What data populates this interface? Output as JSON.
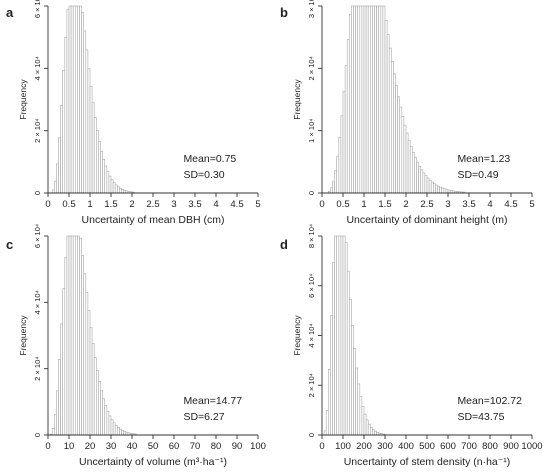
{
  "chart_data": [
    {
      "type": "bar",
      "panel_label": "a",
      "ylabel": "Frequency",
      "xlabel": "Uncertainty of mean DBH (cm)",
      "xlim": [
        0,
        5
      ],
      "ylim": [
        0,
        60000
      ],
      "x_ticks": [
        "0",
        "0.5",
        "1",
        "1.5",
        "2",
        "2.5",
        "3",
        "3.5",
        "4",
        "4.5",
        "5"
      ],
      "y_ticks": [
        "0",
        "2 × 10⁴",
        "4 × 10⁴",
        "6 × 10⁴"
      ],
      "stats": [
        "Mean=0.75",
        "SD=0.30"
      ],
      "dist": {
        "shape": "gamma",
        "mean": 0.75,
        "sd": 0.3,
        "bin": 0.05,
        "n": 1000000
      }
    },
    {
      "type": "bar",
      "panel_label": "b",
      "ylabel": "Frequency",
      "xlabel": "Uncertainty of dominant height (m)",
      "xlim": [
        0,
        5
      ],
      "ylim": [
        0,
        30000
      ],
      "x_ticks": [
        "0",
        "0.5",
        "1",
        "1.5",
        "2",
        "2.5",
        "3",
        "3.5",
        "4",
        "4.5",
        "5"
      ],
      "y_ticks": [
        "0",
        "1 × 10⁴",
        "2 × 10⁴",
        "3 × 10⁴"
      ],
      "stats": [
        "Mean=1.23",
        "SD=0.49"
      ],
      "dist": {
        "shape": "gamma",
        "mean": 1.23,
        "sd": 0.49,
        "bin": 0.05,
        "n": 1000000
      }
    },
    {
      "type": "bar",
      "panel_label": "c",
      "ylabel": "Frequency",
      "xlabel": "Uncertainty of volume (m³·ha⁻¹)",
      "xlim": [
        0,
        100
      ],
      "ylim": [
        0,
        60000
      ],
      "x_ticks": [
        "0",
        "10",
        "20",
        "30",
        "40",
        "50",
        "60",
        "70",
        "80",
        "90",
        "100"
      ],
      "y_ticks": [
        "0",
        "2 × 10⁴",
        "4 × 10⁴",
        "6 × 10⁴"
      ],
      "stats": [
        "Mean=14.77",
        "SD=6.27"
      ],
      "dist": {
        "shape": "gamma",
        "mean": 14.77,
        "sd": 6.27,
        "bin": 1,
        "n": 1000000
      }
    },
    {
      "type": "bar",
      "panel_label": "d",
      "ylabel": "Frequency",
      "xlabel": "Uncertainty of stem density (n·ha⁻¹)",
      "xlim": [
        0,
        1000
      ],
      "ylim": [
        0,
        80000
      ],
      "x_ticks": [
        "0",
        "100",
        "200",
        "300",
        "400",
        "500",
        "600",
        "700",
        "800",
        "900",
        "1000"
      ],
      "y_ticks": [
        "0",
        "2 × 10⁴",
        "4 × 10⁴",
        "6 × 10⁴",
        "8 × 10⁴"
      ],
      "stats": [
        "Mean=102.72",
        "SD=43.75"
      ],
      "dist": {
        "shape": "gamma",
        "mean": 102.72,
        "sd": 43.75,
        "bin": 10,
        "n": 1000000
      }
    }
  ]
}
